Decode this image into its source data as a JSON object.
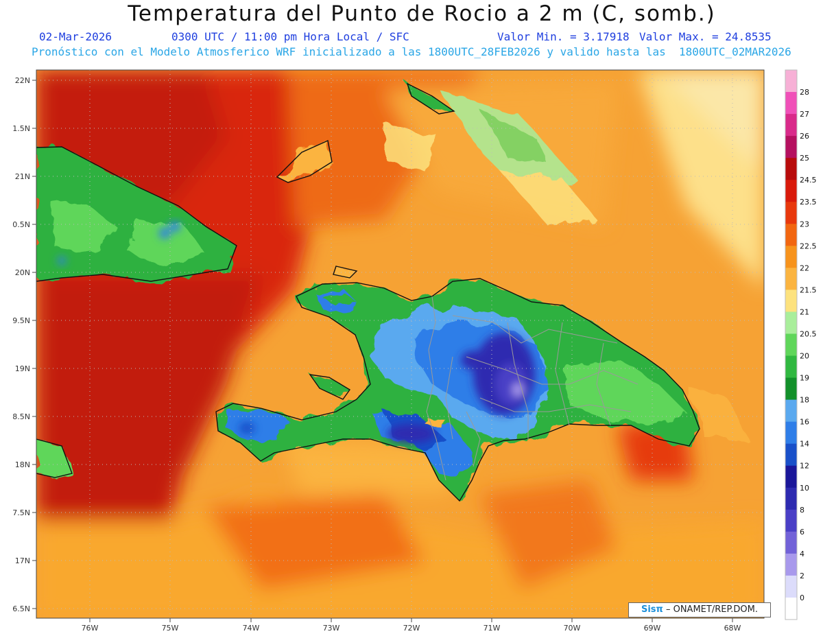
{
  "header": {
    "title": "Temperatura del Punto de Rocio a 2 m (C, somb.)",
    "date": "02-Mar-2026",
    "time": "0300 UTC / 11:00 pm Hora Local / SFC",
    "vmin": "Valor Min. = 3.17918",
    "vmax": "Valor Max. = 24.8535",
    "model_line": "Pronóstico con el Modelo Atmosferico WRF inicializado a las 1800UTC_28FEB2026 y valido hasta las  1800UTC_02MAR2026"
  },
  "map": {
    "lat_labels": [
      "22N",
      "1.5N",
      "21N",
      "0.5N",
      "20N",
      "9.5N",
      "19N",
      "8.5N",
      "18N",
      "7.5N",
      "17N",
      "6.5N"
    ],
    "lon_labels": [
      "76W",
      "75W",
      "74W",
      "73W",
      "72W",
      "71W",
      "70W",
      "69W",
      "68W"
    ]
  },
  "colorbar": {
    "labels": [
      "28",
      "27",
      "26",
      "25",
      "24.5",
      "23.5",
      "23",
      "22.5",
      "22",
      "21.5",
      "21",
      "20.5",
      "20",
      "19",
      "18",
      "16",
      "14",
      "12",
      "10",
      "8",
      "6",
      "4",
      "2",
      "0"
    ],
    "colors": [
      "#f7b0d6",
      "#f050b8",
      "#d92a8a",
      "#b5105f",
      "#b80b0b",
      "#d91a0a",
      "#e8380c",
      "#f26610",
      "#f7931c",
      "#fbb440",
      "#fde27e",
      "#a9ee9b",
      "#5fd65a",
      "#30b840",
      "#12902a",
      "#5aa9ef",
      "#2f7ee8",
      "#1950c9",
      "#1a1699",
      "#2d2ab0",
      "#4a3fc6",
      "#7262d8",
      "#a899ec",
      "#dcdcfb",
      "#ffffff"
    ]
  },
  "credit": {
    "logo": "Sisπ",
    "text": "– ONAMET/REP.DOM."
  }
}
